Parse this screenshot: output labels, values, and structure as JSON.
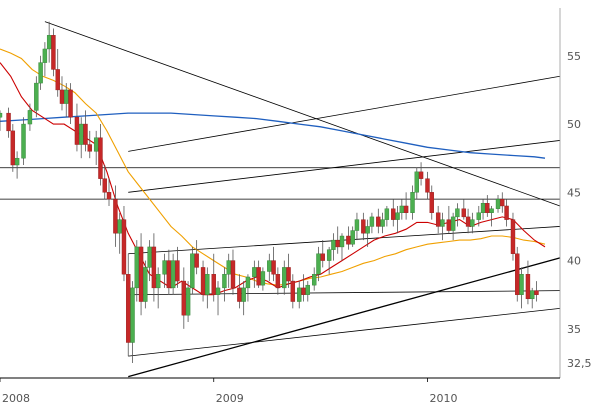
{
  "chart_data": {
    "type": "candlestick",
    "y_axis": {
      "position": "right",
      "ylim": [
        31.4,
        58.5
      ]
    },
    "x_axis": {
      "tick_labels": [
        "2008",
        "2009",
        "2010"
      ],
      "tick_positions": [
        2008.0,
        2009.0,
        2010.0
      ],
      "range": [
        2008.0,
        2010.62
      ]
    },
    "y_ticks": [
      55,
      50,
      45,
      40,
      35,
      32.5
    ],
    "y_tick_labels": [
      "55",
      "50",
      "45",
      "40",
      "35",
      "32,5"
    ],
    "colors": {
      "up": "#4caf50",
      "down": "#c62828",
      "wick": "#555555",
      "ma_short": "#cc0000",
      "ma_mid": "#f0a000",
      "ma_long": "#1f5fbf",
      "trend": "#000000",
      "horizontal": "#000000",
      "grid": "#000000"
    },
    "horizontal_levels": [
      46.8,
      44.5
    ],
    "trendlines": [
      {
        "from": [
          2008.21,
          57.5
        ],
        "to": [
          2010.62,
          44.0
        ]
      },
      {
        "from": [
          2008.6,
          31.5
        ],
        "to": [
          2010.62,
          40.2
        ]
      },
      {
        "from": [
          2008.6,
          33.0
        ],
        "to": [
          2010.62,
          36.5
        ]
      },
      {
        "from": [
          2008.6,
          37.5
        ],
        "to": [
          2010.62,
          37.8
        ]
      },
      {
        "from": [
          2008.6,
          40.5
        ],
        "to": [
          2010.62,
          42.5
        ]
      },
      {
        "from": [
          2008.6,
          45.0
        ],
        "to": [
          2010.62,
          48.8
        ]
      },
      {
        "from": [
          2008.6,
          48.0
        ],
        "to": [
          2010.62,
          53.5
        ]
      }
    ],
    "ma_short": [
      [
        2008.0,
        54.5
      ],
      [
        2008.05,
        53.5
      ],
      [
        2008.1,
        52.0
      ],
      [
        2008.15,
        51.0
      ],
      [
        2008.2,
        50.5
      ],
      [
        2008.25,
        50.0
      ],
      [
        2008.3,
        50.0
      ],
      [
        2008.35,
        49.5
      ],
      [
        2008.4,
        49.0
      ],
      [
        2008.45,
        48.5
      ],
      [
        2008.5,
        46.5
      ],
      [
        2008.55,
        44.0
      ],
      [
        2008.6,
        42.0
      ],
      [
        2008.65,
        40.5
      ],
      [
        2008.7,
        39.0
      ],
      [
        2008.75,
        38.5
      ],
      [
        2008.8,
        38.0
      ],
      [
        2008.85,
        38.5
      ],
      [
        2008.9,
        38.0
      ],
      [
        2008.95,
        37.5
      ],
      [
        2009.0,
        37.5
      ],
      [
        2009.05,
        37.8
      ],
      [
        2009.1,
        38.0
      ],
      [
        2009.15,
        38.5
      ],
      [
        2009.2,
        38.8
      ],
      [
        2009.25,
        38.5
      ],
      [
        2009.3,
        38.0
      ],
      [
        2009.35,
        38.3
      ],
      [
        2009.4,
        38.5
      ],
      [
        2009.45,
        38.8
      ],
      [
        2009.5,
        39.0
      ],
      [
        2009.55,
        39.5
      ],
      [
        2009.6,
        40.0
      ],
      [
        2009.65,
        40.5
      ],
      [
        2009.7,
        41.0
      ],
      [
        2009.75,
        41.5
      ],
      [
        2009.8,
        41.8
      ],
      [
        2009.85,
        42.0
      ],
      [
        2009.9,
        42.3
      ],
      [
        2009.95,
        42.8
      ],
      [
        2010.0,
        42.8
      ],
      [
        2010.05,
        42.6
      ],
      [
        2010.1,
        42.8
      ],
      [
        2010.15,
        43.0
      ],
      [
        2010.2,
        42.5
      ],
      [
        2010.25,
        42.8
      ],
      [
        2010.3,
        43.0
      ],
      [
        2010.35,
        43.2
      ],
      [
        2010.4,
        43.0
      ],
      [
        2010.45,
        42.2
      ],
      [
        2010.5,
        41.5
      ],
      [
        2010.55,
        41.0
      ]
    ],
    "ma_mid": [
      [
        2008.0,
        55.5
      ],
      [
        2008.05,
        55.2
      ],
      [
        2008.1,
        54.8
      ],
      [
        2008.15,
        54.0
      ],
      [
        2008.2,
        53.5
      ],
      [
        2008.25,
        53.2
      ],
      [
        2008.3,
        52.8
      ],
      [
        2008.35,
        52.3
      ],
      [
        2008.4,
        51.5
      ],
      [
        2008.45,
        50.8
      ],
      [
        2008.5,
        49.5
      ],
      [
        2008.55,
        48.0
      ],
      [
        2008.6,
        46.5
      ],
      [
        2008.65,
        45.5
      ],
      [
        2008.7,
        44.5
      ],
      [
        2008.75,
        43.5
      ],
      [
        2008.8,
        42.5
      ],
      [
        2008.85,
        41.8
      ],
      [
        2008.9,
        41.0
      ],
      [
        2008.95,
        40.5
      ],
      [
        2009.0,
        40.0
      ],
      [
        2009.05,
        39.5
      ],
      [
        2009.1,
        39.0
      ],
      [
        2009.15,
        38.8
      ],
      [
        2009.2,
        38.5
      ],
      [
        2009.25,
        38.3
      ],
      [
        2009.3,
        38.2
      ],
      [
        2009.35,
        38.3
      ],
      [
        2009.4,
        38.5
      ],
      [
        2009.45,
        38.7
      ],
      [
        2009.5,
        38.8
      ],
      [
        2009.55,
        39.0
      ],
      [
        2009.6,
        39.2
      ],
      [
        2009.65,
        39.5
      ],
      [
        2009.7,
        39.8
      ],
      [
        2009.75,
        40.0
      ],
      [
        2009.8,
        40.3
      ],
      [
        2009.85,
        40.5
      ],
      [
        2009.9,
        40.8
      ],
      [
        2009.95,
        41.0
      ],
      [
        2010.0,
        41.2
      ],
      [
        2010.05,
        41.3
      ],
      [
        2010.1,
        41.4
      ],
      [
        2010.15,
        41.5
      ],
      [
        2010.2,
        41.5
      ],
      [
        2010.25,
        41.6
      ],
      [
        2010.3,
        41.8
      ],
      [
        2010.35,
        41.8
      ],
      [
        2010.4,
        41.7
      ],
      [
        2010.45,
        41.5
      ],
      [
        2010.5,
        41.4
      ],
      [
        2010.55,
        41.2
      ]
    ],
    "ma_long": [
      [
        2008.0,
        50.2
      ],
      [
        2008.1,
        50.3
      ],
      [
        2008.2,
        50.4
      ],
      [
        2008.3,
        50.5
      ],
      [
        2008.4,
        50.6
      ],
      [
        2008.5,
        50.7
      ],
      [
        2008.6,
        50.8
      ],
      [
        2008.7,
        50.8
      ],
      [
        2008.8,
        50.8
      ],
      [
        2008.9,
        50.7
      ],
      [
        2009.0,
        50.6
      ],
      [
        2009.1,
        50.5
      ],
      [
        2009.2,
        50.4
      ],
      [
        2009.3,
        50.2
      ],
      [
        2009.4,
        50.0
      ],
      [
        2009.5,
        49.8
      ],
      [
        2009.6,
        49.5
      ],
      [
        2009.7,
        49.2
      ],
      [
        2009.8,
        48.9
      ],
      [
        2009.9,
        48.6
      ],
      [
        2010.0,
        48.3
      ],
      [
        2010.1,
        48.1
      ],
      [
        2010.2,
        47.9
      ],
      [
        2010.3,
        47.8
      ],
      [
        2010.4,
        47.7
      ],
      [
        2010.5,
        47.6
      ],
      [
        2010.55,
        47.5
      ]
    ],
    "candles": [
      [
        2008.0,
        50.5,
        51.0,
        49.5,
        50.8
      ],
      [
        2008.04,
        50.8,
        51.2,
        49.0,
        49.5
      ],
      [
        2008.06,
        49.5,
        50.0,
        46.5,
        47.0
      ],
      [
        2008.08,
        47.0,
        48.0,
        46.0,
        47.5
      ],
      [
        2008.11,
        47.5,
        50.5,
        47.0,
        50.0
      ],
      [
        2008.14,
        50.0,
        51.5,
        49.5,
        51.0
      ],
      [
        2008.17,
        51.0,
        53.5,
        50.5,
        53.0
      ],
      [
        2008.19,
        53.0,
        55.0,
        52.5,
        54.5
      ],
      [
        2008.21,
        54.5,
        56.0,
        53.5,
        55.5
      ],
      [
        2008.23,
        55.5,
        57.5,
        54.5,
        56.5
      ],
      [
        2008.25,
        56.5,
        57.0,
        53.5,
        54.0
      ],
      [
        2008.27,
        54.0,
        55.5,
        52.0,
        52.5
      ],
      [
        2008.29,
        52.5,
        53.5,
        51.0,
        51.5
      ],
      [
        2008.31,
        51.5,
        53.0,
        50.5,
        52.5
      ],
      [
        2008.33,
        52.5,
        53.0,
        50.0,
        50.5
      ],
      [
        2008.36,
        50.5,
        51.5,
        48.0,
        48.5
      ],
      [
        2008.38,
        48.5,
        50.5,
        47.5,
        50.0
      ],
      [
        2008.4,
        50.0,
        51.0,
        48.0,
        48.5
      ],
      [
        2008.42,
        48.5,
        49.5,
        47.5,
        48.0
      ],
      [
        2008.45,
        48.0,
        49.5,
        47.0,
        49.0
      ],
      [
        2008.47,
        49.0,
        50.0,
        45.5,
        46.0
      ],
      [
        2008.49,
        46.0,
        47.0,
        44.5,
        45.0
      ],
      [
        2008.51,
        45.0,
        46.0,
        44.0,
        44.5
      ],
      [
        2008.54,
        44.5,
        45.5,
        41.0,
        42.0
      ],
      [
        2008.56,
        42.0,
        43.5,
        40.5,
        43.0
      ],
      [
        2008.58,
        43.0,
        44.0,
        38.5,
        39.0
      ],
      [
        2008.6,
        39.0,
        40.5,
        33.0,
        34.0
      ],
      [
        2008.62,
        34.0,
        38.5,
        32.5,
        38.0
      ],
      [
        2008.64,
        38.0,
        41.5,
        37.0,
        41.0
      ],
      [
        2008.66,
        41.0,
        42.0,
        36.0,
        37.0
      ],
      [
        2008.68,
        37.0,
        40.0,
        36.5,
        39.5
      ],
      [
        2008.7,
        39.5,
        41.5,
        38.5,
        41.0
      ],
      [
        2008.72,
        41.0,
        42.0,
        37.0,
        38.0
      ],
      [
        2008.74,
        38.0,
        39.5,
        36.5,
        39.0
      ],
      [
        2008.77,
        39.0,
        40.5,
        38.0,
        40.0
      ],
      [
        2008.79,
        40.0,
        40.8,
        37.5,
        38.0
      ],
      [
        2008.81,
        38.0,
        40.5,
        37.5,
        40.0
      ],
      [
        2008.83,
        40.0,
        41.0,
        38.0,
        38.5
      ],
      [
        2008.86,
        38.5,
        39.5,
        35.0,
        36.0
      ],
      [
        2008.88,
        36.0,
        38.5,
        35.5,
        38.0
      ],
      [
        2008.9,
        38.0,
        41.0,
        37.5,
        40.5
      ],
      [
        2008.92,
        40.5,
        41.5,
        39.0,
        39.5
      ],
      [
        2008.95,
        39.5,
        40.0,
        37.0,
        37.5
      ],
      [
        2008.97,
        37.5,
        39.5,
        36.5,
        39.0
      ],
      [
        2009.0,
        39.0,
        40.5,
        37.0,
        37.5
      ],
      [
        2009.02,
        37.5,
        38.5,
        36.0,
        38.0
      ],
      [
        2009.05,
        38.0,
        39.5,
        37.0,
        39.0
      ],
      [
        2009.07,
        39.0,
        40.5,
        38.0,
        40.0
      ],
      [
        2009.09,
        40.0,
        40.8,
        37.5,
        38.0
      ],
      [
        2009.12,
        38.0,
        39.0,
        36.5,
        37.0
      ],
      [
        2009.14,
        37.0,
        38.5,
        36.0,
        38.0
      ],
      [
        2009.16,
        38.0,
        39.0,
        37.0,
        38.8
      ],
      [
        2009.19,
        38.8,
        40.0,
        38.0,
        39.5
      ],
      [
        2009.21,
        39.5,
        40.0,
        38.0,
        38.2
      ],
      [
        2009.23,
        38.2,
        39.5,
        37.8,
        39.2
      ],
      [
        2009.26,
        39.2,
        40.5,
        38.5,
        40.0
      ],
      [
        2009.28,
        40.0,
        41.0,
        38.5,
        39.0
      ],
      [
        2009.3,
        39.0,
        39.5,
        37.5,
        38.0
      ],
      [
        2009.33,
        38.0,
        40.0,
        37.5,
        39.5
      ],
      [
        2009.35,
        39.5,
        40.5,
        38.0,
        38.5
      ],
      [
        2009.37,
        38.5,
        39.0,
        36.5,
        37.0
      ],
      [
        2009.4,
        37.0,
        38.5,
        36.5,
        38.0
      ],
      [
        2009.42,
        38.0,
        39.0,
        37.0,
        37.5
      ],
      [
        2009.44,
        37.5,
        38.5,
        37.0,
        38.2
      ],
      [
        2009.47,
        38.2,
        39.5,
        37.8,
        39.0
      ],
      [
        2009.49,
        39.0,
        41.0,
        38.5,
        40.5
      ],
      [
        2009.51,
        40.5,
        41.5,
        39.5,
        40.0
      ],
      [
        2009.54,
        40.0,
        41.0,
        39.0,
        40.8
      ],
      [
        2009.56,
        40.8,
        42.0,
        40.0,
        41.5
      ],
      [
        2009.58,
        41.5,
        42.5,
        40.5,
        41.0
      ],
      [
        2009.6,
        41.0,
        42.0,
        40.0,
        41.8
      ],
      [
        2009.63,
        41.8,
        42.5,
        40.8,
        41.2
      ],
      [
        2009.65,
        41.2,
        42.5,
        41.0,
        42.2
      ],
      [
        2009.67,
        42.2,
        43.5,
        41.5,
        43.0
      ],
      [
        2009.7,
        43.0,
        43.5,
        41.5,
        42.0
      ],
      [
        2009.72,
        42.0,
        43.0,
        41.0,
        42.5
      ],
      [
        2009.74,
        42.5,
        43.5,
        42.0,
        43.2
      ],
      [
        2009.77,
        43.2,
        43.8,
        42.0,
        42.5
      ],
      [
        2009.79,
        42.5,
        43.5,
        42.0,
        43.0
      ],
      [
        2009.81,
        43.0,
        44.0,
        42.5,
        43.8
      ],
      [
        2009.84,
        43.8,
        44.5,
        42.5,
        43.0
      ],
      [
        2009.86,
        43.0,
        44.0,
        42.0,
        43.5
      ],
      [
        2009.88,
        43.5,
        44.5,
        43.0,
        44.0
      ],
      [
        2009.9,
        44.0,
        45.0,
        43.0,
        43.5
      ],
      [
        2009.93,
        43.5,
        45.5,
        43.0,
        45.0
      ],
      [
        2009.95,
        45.0,
        46.8,
        44.5,
        46.5
      ],
      [
        2009.97,
        46.5,
        47.2,
        45.5,
        46.0
      ],
      [
        2010.0,
        46.0,
        46.5,
        44.5,
        45.0
      ],
      [
        2010.02,
        45.0,
        45.5,
        43.0,
        43.5
      ],
      [
        2010.05,
        43.5,
        44.0,
        42.0,
        42.5
      ],
      [
        2010.07,
        42.5,
        43.5,
        41.5,
        43.0
      ],
      [
        2010.1,
        43.0,
        44.0,
        42.0,
        42.2
      ],
      [
        2010.12,
        42.2,
        43.5,
        41.5,
        43.2
      ],
      [
        2010.14,
        43.2,
        44.2,
        42.5,
        43.8
      ],
      [
        2010.17,
        43.8,
        44.5,
        43.0,
        43.2
      ],
      [
        2010.19,
        43.2,
        43.8,
        42.0,
        42.5
      ],
      [
        2010.21,
        42.5,
        43.5,
        42.0,
        43.0
      ],
      [
        2010.24,
        43.0,
        44.0,
        42.5,
        43.5
      ],
      [
        2010.26,
        43.5,
        44.5,
        43.0,
        44.2
      ],
      [
        2010.28,
        44.2,
        44.8,
        43.2,
        43.5
      ],
      [
        2010.3,
        43.5,
        44.0,
        42.5,
        43.8
      ],
      [
        2010.33,
        43.8,
        44.8,
        43.5,
        44.5
      ],
      [
        2010.35,
        44.5,
        45.0,
        43.5,
        44.0
      ],
      [
        2010.37,
        44.0,
        44.5,
        42.5,
        43.0
      ],
      [
        2010.4,
        43.0,
        43.5,
        40.0,
        40.5
      ],
      [
        2010.42,
        40.5,
        41.0,
        37.0,
        37.5
      ],
      [
        2010.44,
        37.5,
        39.5,
        36.5,
        39.0
      ],
      [
        2010.47,
        39.0,
        40.0,
        36.8,
        37.2
      ],
      [
        2010.49,
        37.2,
        38.0,
        36.5,
        37.8
      ],
      [
        2010.51,
        37.8,
        38.5,
        37.0,
        37.5
      ]
    ]
  }
}
